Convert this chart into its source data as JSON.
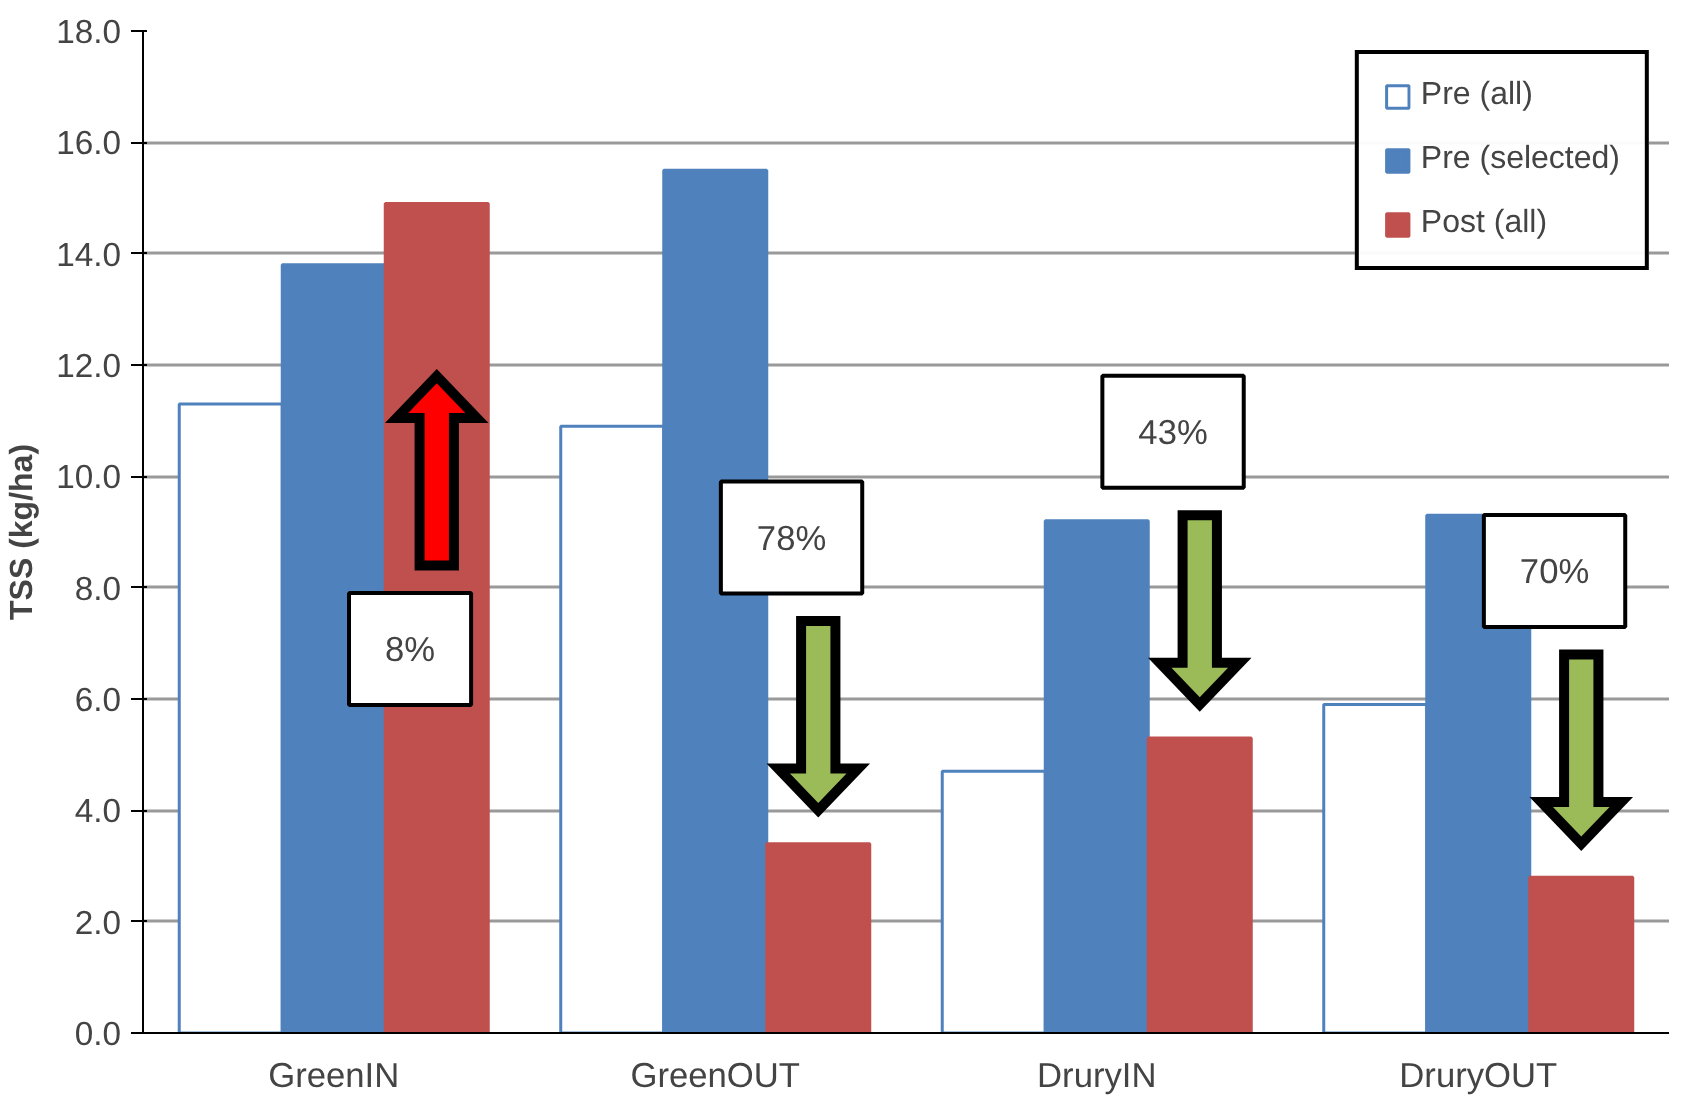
{
  "chart_data": {
    "type": "bar",
    "ylabel": "TSS (kg/ha)",
    "categories": [
      "GreenIN",
      "GreenOUT",
      "DruryIN",
      "DruryOUT"
    ],
    "series": [
      {
        "name": "Pre (all)",
        "color": "#ffffff",
        "values": [
          11.3,
          10.9,
          4.7,
          5.9
        ]
      },
      {
        "name": "Pre (selected)",
        "color": "#4f81bd",
        "values": [
          13.8,
          15.5,
          9.2,
          9.3
        ]
      },
      {
        "name": "Post (all)",
        "color": "#c0504d",
        "values": [
          14.9,
          3.4,
          5.3,
          2.8
        ]
      }
    ],
    "ylim": [
      0,
      18
    ],
    "yticks": [
      {
        "value": 0,
        "label": "0.0"
      },
      {
        "value": 2,
        "label": "2.0"
      },
      {
        "value": 4,
        "label": "4.0"
      },
      {
        "value": 6,
        "label": "6.0"
      },
      {
        "value": 8,
        "label": "8.0"
      },
      {
        "value": 10,
        "label": "10.0"
      },
      {
        "value": 12,
        "label": "12.0"
      },
      {
        "value": 14,
        "label": "14.0"
      },
      {
        "value": 16,
        "label": "16.0"
      },
      {
        "value": 18,
        "label": "18.0"
      }
    ],
    "grid": "y",
    "legend": "top right",
    "annotations": [
      "8%",
      "78%",
      "43%",
      "70%"
    ]
  }
}
